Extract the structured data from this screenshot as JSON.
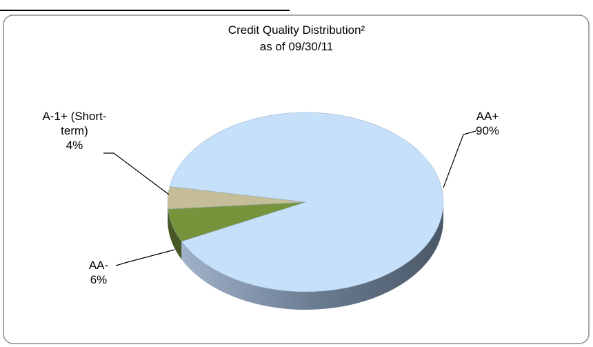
{
  "chart_data": {
    "type": "pie",
    "title": "Credit Quality Distribution²",
    "subtitle": "as of 09/30/11",
    "categories": [
      "AA+",
      "AA-",
      "A-1+ (Short-term)"
    ],
    "values": [
      90,
      6,
      4
    ],
    "value_labels": [
      "90%",
      "6%",
      "4%"
    ],
    "colors": [
      "#c6e0fa",
      "#77933c",
      "#c4bd97"
    ]
  }
}
